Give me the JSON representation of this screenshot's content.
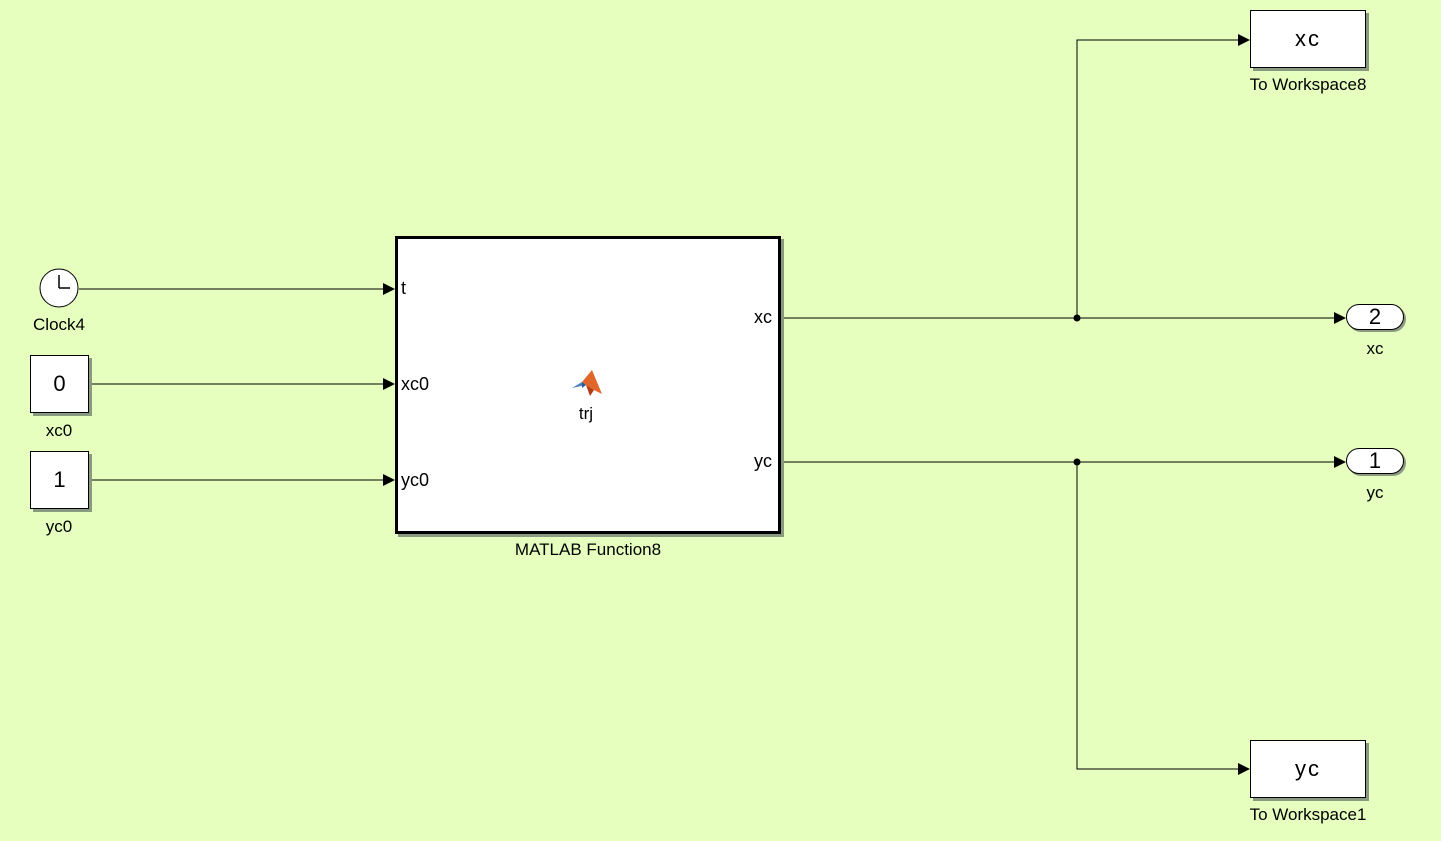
{
  "blocks": {
    "clock": {
      "label": "Clock4"
    },
    "const_xc0": {
      "value": "0",
      "label": "xc0"
    },
    "const_yc0": {
      "value": "1",
      "label": "yc0"
    },
    "matlab_fcn": {
      "label": "MATLAB Function8",
      "function_name": "trj",
      "inputs": [
        "t",
        "xc0",
        "yc0"
      ],
      "outputs": [
        "xc",
        "yc"
      ]
    },
    "to_ws_xc": {
      "value": "xc",
      "label": "To Workspace8"
    },
    "to_ws_yc": {
      "value": "yc",
      "label": "To Workspace1"
    },
    "outport_xc": {
      "number": "2",
      "label": "xc"
    },
    "outport_yc": {
      "number": "1",
      "label": "yc"
    }
  },
  "colors": {
    "canvas_background": "#e6ffbf",
    "block_fill": "#ffffff",
    "wire": "#000000",
    "matlab_logo": "#e0662b"
  },
  "icons": {
    "clock": "clock-icon",
    "matlab": "matlab-logo-icon"
  }
}
